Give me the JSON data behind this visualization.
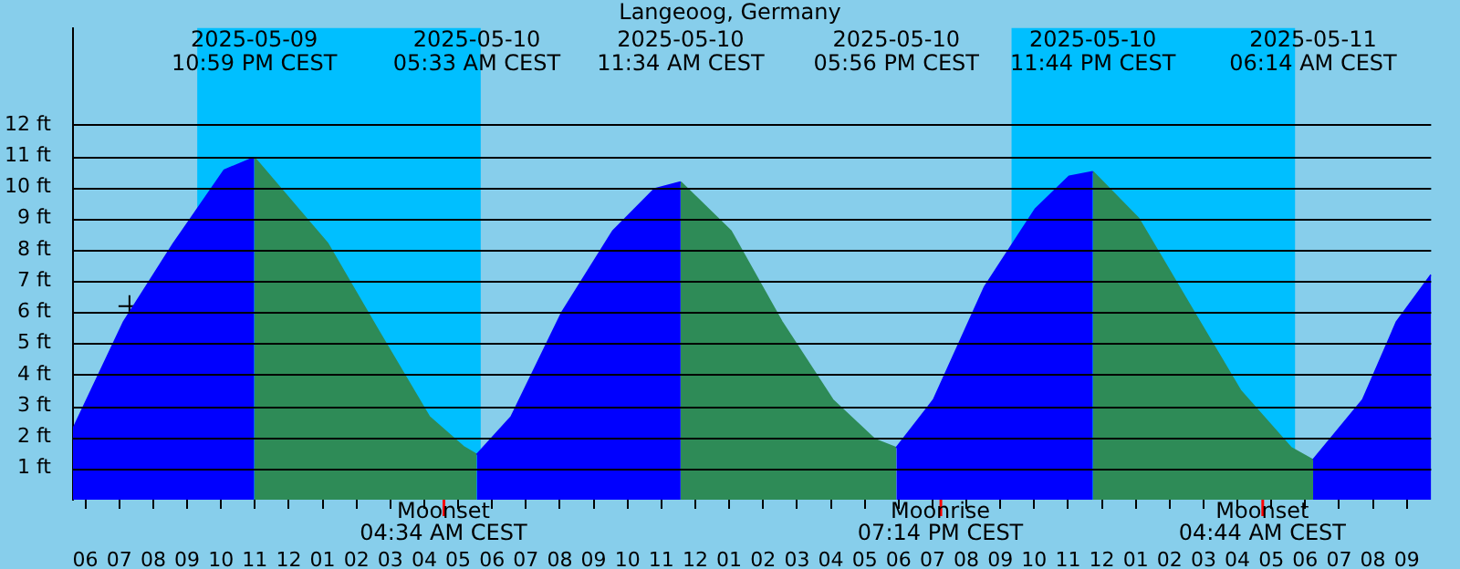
{
  "chart_data": {
    "type": "area",
    "title": "Langeoog, Germany",
    "xlim": [
      "2025-05-09T17:38",
      "2025-05-11T09:43"
    ],
    "xticks": [
      {
        "value": "2025-05-09T18:00",
        "label": "06"
      },
      {
        "value": "2025-05-09T19:00",
        "label": "07"
      },
      {
        "value": "2025-05-09T20:00",
        "label": "08"
      },
      {
        "value": "2025-05-09T21:00",
        "label": "09"
      },
      {
        "value": "2025-05-09T22:00",
        "label": "10"
      },
      {
        "value": "2025-05-09T23:00",
        "label": "11"
      },
      {
        "value": "2025-05-10T00:00",
        "label": "12"
      },
      {
        "value": "2025-05-10T01:00",
        "label": "01"
      },
      {
        "value": "2025-05-10T02:00",
        "label": "02"
      },
      {
        "value": "2025-05-10T03:00",
        "label": "03"
      },
      {
        "value": "2025-05-10T04:00",
        "label": "04"
      },
      {
        "value": "2025-05-10T05:00",
        "label": "05"
      },
      {
        "value": "2025-05-10T06:00",
        "label": "06"
      },
      {
        "value": "2025-05-10T07:00",
        "label": "07"
      },
      {
        "value": "2025-05-10T08:00",
        "label": "08"
      },
      {
        "value": "2025-05-10T09:00",
        "label": "09"
      },
      {
        "value": "2025-05-10T10:00",
        "label": "10"
      },
      {
        "value": "2025-05-10T11:00",
        "label": "11"
      },
      {
        "value": "2025-05-10T12:00",
        "label": "12"
      },
      {
        "value": "2025-05-10T13:00",
        "label": "01"
      },
      {
        "value": "2025-05-10T14:00",
        "label": "02"
      },
      {
        "value": "2025-05-10T15:00",
        "label": "03"
      },
      {
        "value": "2025-05-10T16:00",
        "label": "04"
      },
      {
        "value": "2025-05-10T17:00",
        "label": "05"
      },
      {
        "value": "2025-05-10T18:00",
        "label": "06"
      },
      {
        "value": "2025-05-10T19:00",
        "label": "07"
      },
      {
        "value": "2025-05-10T20:00",
        "label": "08"
      },
      {
        "value": "2025-05-10T21:00",
        "label": "09"
      },
      {
        "value": "2025-05-10T22:00",
        "label": "10"
      },
      {
        "value": "2025-05-10T23:00",
        "label": "11"
      },
      {
        "value": "2025-05-11T00:00",
        "label": "12"
      },
      {
        "value": "2025-05-11T01:00",
        "label": "01"
      },
      {
        "value": "2025-05-11T02:00",
        "label": "02"
      },
      {
        "value": "2025-05-11T03:00",
        "label": "03"
      },
      {
        "value": "2025-05-11T04:00",
        "label": "04"
      },
      {
        "value": "2025-05-11T05:00",
        "label": "05"
      },
      {
        "value": "2025-05-11T06:00",
        "label": "06"
      },
      {
        "value": "2025-05-11T07:00",
        "label": "07"
      },
      {
        "value": "2025-05-11T08:00",
        "label": "08"
      },
      {
        "value": "2025-05-11T09:00",
        "label": "09"
      }
    ],
    "ylim": [
      0,
      15.1
    ],
    "yticks": [
      {
        "value": 1,
        "label": "1 ft"
      },
      {
        "value": 2,
        "label": "2 ft"
      },
      {
        "value": 3,
        "label": "3 ft"
      },
      {
        "value": 4,
        "label": "4 ft"
      },
      {
        "value": 5,
        "label": "5 ft"
      },
      {
        "value": 6,
        "label": "6 ft"
      },
      {
        "value": 7,
        "label": "7 ft"
      },
      {
        "value": 8,
        "label": "8 ft"
      },
      {
        "value": 9,
        "label": "9 ft"
      },
      {
        "value": 10,
        "label": "10 ft"
      },
      {
        "value": 11,
        "label": "11 ft"
      },
      {
        "value": 12,
        "label": "12 ft"
      }
    ],
    "grid": "y",
    "legend": false,
    "series": [
      {
        "color": "#0000ff",
        "x": [
          "2025-05-09T17:38",
          "2025-05-09T19:08",
          "2025-05-09T20:36",
          "2025-05-09T22:06",
          "2025-05-09T22:59",
          "2025-05-10T02:00",
          "2025-05-10T05:33",
          "2025-05-10T06:34",
          "2025-05-10T08:04",
          "2025-05-10T09:34",
          "2025-05-10T10:48",
          "2025-05-10T11:34",
          "2025-05-10T14:00",
          "2025-05-10T17:56",
          "2025-05-10T19:02",
          "2025-05-10T20:32",
          "2025-05-10T22:02",
          "2025-05-10T23:02",
          "2025-05-10T23:44",
          "2025-05-11T02:00",
          "2025-05-11T06:14",
          "2025-05-11T07:42",
          "2025-05-11T08:42",
          "2025-05-11T09:43"
        ],
        "values": [
          2.26,
          5.7,
          8.2,
          10.55,
          10.95,
          null,
          1.44,
          2.65,
          6.0,
          8.6,
          9.95,
          10.17,
          null,
          1.66,
          3.2,
          6.8,
          9.3,
          10.35,
          10.5,
          null,
          1.27,
          3.2,
          5.7,
          7.2
        ]
      },
      {
        "color": "#2e8b57",
        "x": [
          "2025-05-09T22:59",
          "2025-05-10T01:09",
          "2025-05-10T02:39",
          "2025-05-10T04:09",
          "2025-05-10T05:09",
          "2025-05-10T05:33",
          "2025-05-10T08:00",
          "2025-05-10T11:34",
          "2025-05-10T13:03",
          "2025-05-10T14:33",
          "2025-05-10T16:03",
          "2025-05-10T17:18",
          "2025-05-10T17:56",
          "2025-05-10T20:00",
          "2025-05-10T23:44",
          "2025-05-11T01:05",
          "2025-05-11T02:35",
          "2025-05-11T04:05",
          "2025-05-11T05:35",
          "2025-05-11T06:14"
        ],
        "values": [
          10.95,
          8.2,
          5.4,
          2.65,
          1.7,
          1.44,
          null,
          10.17,
          8.6,
          5.7,
          3.2,
          1.93,
          1.66,
          null,
          10.5,
          9.0,
          6.25,
          3.5,
          1.66,
          1.27
        ]
      },
      {
        "type": "scatter",
        "color": "#000000",
        "marker": "cross",
        "x": [
          "2025-05-09T19:18"
        ],
        "values": [
          6.2
        ]
      }
    ],
    "bands": [
      {
        "axis": "x",
        "from": "2025-05-09T21:18",
        "to": "2025-05-10T05:40",
        "color": "#00bfff"
      },
      {
        "axis": "x",
        "from": "2025-05-10T21:20",
        "to": "2025-05-11T05:42",
        "color": "#00bfff"
      }
    ],
    "ref_lines": [
      {
        "axis": "x",
        "value": "2025-05-10T04:34",
        "label": "Moonset\n04:34 AM CEST",
        "color": "#ff0000"
      },
      {
        "axis": "x",
        "value": "2025-05-10T19:14",
        "label": "Moonrise\n07:14 PM CEST",
        "color": "#ff0000"
      },
      {
        "axis": "x",
        "value": "2025-05-11T04:44",
        "label": "Moonset\n04:44 AM CEST",
        "color": "#ff0000"
      }
    ],
    "annotations": [
      "2025-05-09\n10:59 PM CEST",
      "2025-05-10\n05:33 AM CEST",
      "2025-05-10\n11:34 AM CEST",
      "2025-05-10\n05:56 PM CEST",
      "2025-05-10\n11:44 PM CEST",
      "2025-05-11\n06:14 AM CEST"
    ]
  }
}
